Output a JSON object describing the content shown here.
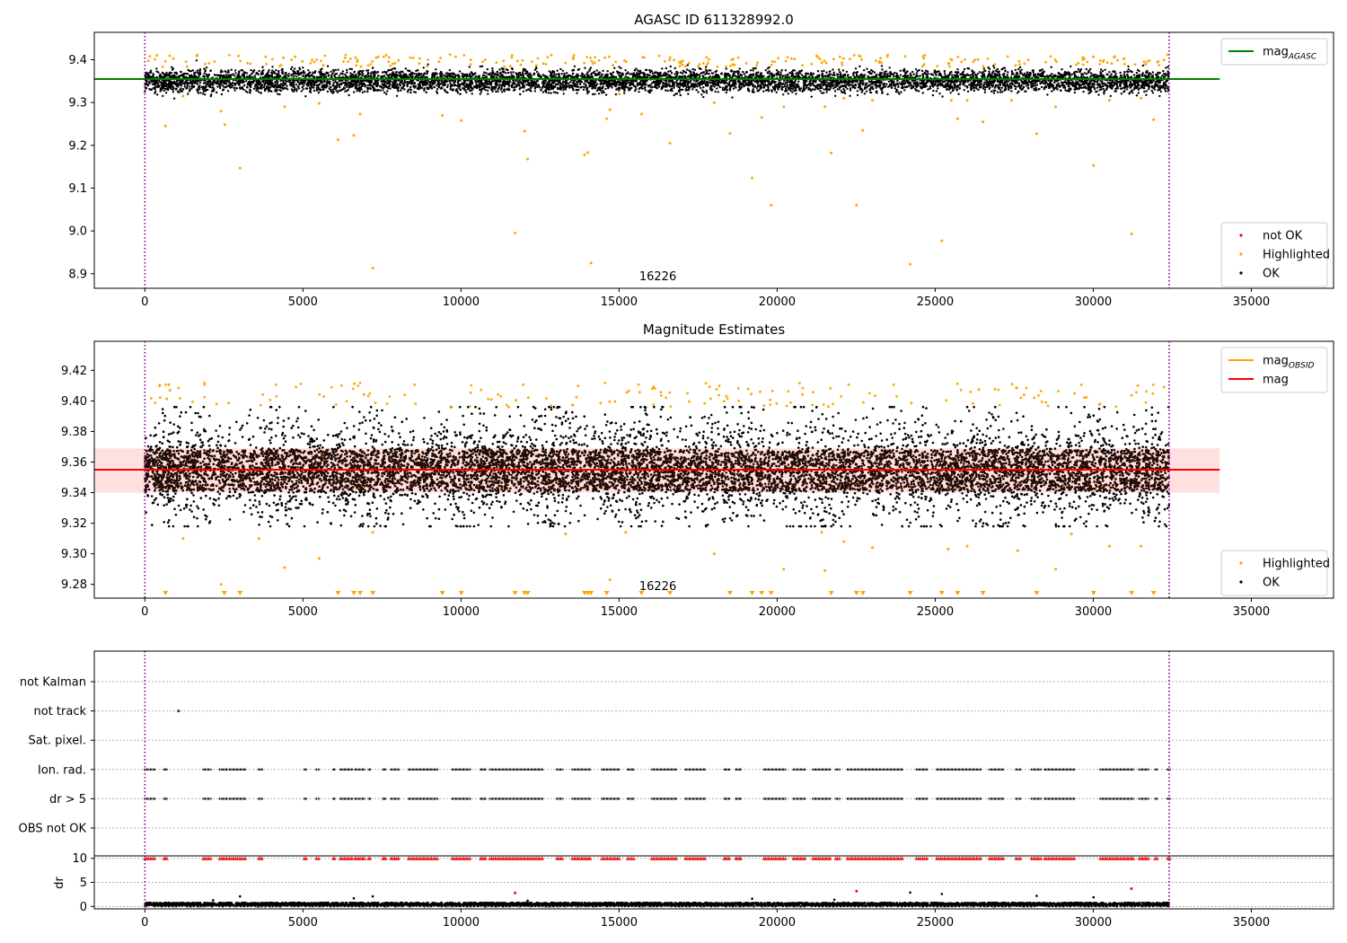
{
  "figure": {
    "background": "#ffffff"
  },
  "chart_data": [
    {
      "type": "scatter",
      "title": "AGASC ID 611328992.0",
      "xlabel": "",
      "ylabel": "",
      "xlim": [
        -1600,
        37600
      ],
      "ylim": [
        8.866,
        9.464
      ],
      "xticks": [
        "0",
        "5000",
        "10000",
        "15000",
        "20000",
        "25000",
        "30000",
        "35000"
      ],
      "yticks": [
        "8.9",
        "9.0",
        "9.1",
        "9.2",
        "9.3",
        "9.4"
      ],
      "vlines": [
        0,
        32400
      ],
      "annotation": "16226",
      "annotation_x": 16226,
      "lines": [
        {
          "name": "mag_AGASC",
          "y": 9.355,
          "x": [
            -1600,
            34000
          ],
          "color": "#008000"
        }
      ],
      "band": {
        "center": 9.35,
        "halfwidth": 0.018,
        "noise": 0.008,
        "n_points": 7000,
        "color": "#000000"
      },
      "highlighted_upper": {
        "from": 9.383,
        "to": 9.412,
        "n_points": 240,
        "color": "#ffa500"
      },
      "highlighted_outliers": [
        [
          650,
          9.245
        ],
        [
          1210,
          9.315
        ],
        [
          2410,
          9.28
        ],
        [
          2530,
          9.248
        ],
        [
          3010,
          9.147
        ],
        [
          4420,
          9.29
        ],
        [
          5510,
          9.298
        ],
        [
          6110,
          9.213
        ],
        [
          6610,
          9.223
        ],
        [
          6810,
          9.273
        ],
        [
          7210,
          8.913
        ],
        [
          9410,
          9.27
        ],
        [
          10010,
          9.258
        ],
        [
          11710,
          8.995
        ],
        [
          12010,
          9.233
        ],
        [
          12110,
          9.168
        ],
        [
          13910,
          9.178
        ],
        [
          14010,
          9.183
        ],
        [
          14110,
          8.925
        ],
        [
          14610,
          9.262
        ],
        [
          14710,
          9.283
        ],
        [
          15010,
          9.32
        ],
        [
          15710,
          9.273
        ],
        [
          16610,
          9.205
        ],
        [
          18010,
          9.3
        ],
        [
          18510,
          9.228
        ],
        [
          19210,
          9.124
        ],
        [
          19510,
          9.265
        ],
        [
          19810,
          9.06
        ],
        [
          20210,
          9.29
        ],
        [
          21510,
          9.29
        ],
        [
          21710,
          9.182
        ],
        [
          22110,
          9.31
        ],
        [
          22510,
          9.06
        ],
        [
          22710,
          9.235
        ],
        [
          23010,
          9.305
        ],
        [
          24210,
          8.922
        ],
        [
          25210,
          8.977
        ],
        [
          25510,
          9.305
        ],
        [
          25710,
          9.262
        ],
        [
          26010,
          9.305
        ],
        [
          26510,
          9.255
        ],
        [
          27410,
          9.305
        ],
        [
          28210,
          9.227
        ],
        [
          28810,
          9.29
        ],
        [
          30010,
          9.153
        ],
        [
          30510,
          9.305
        ],
        [
          31210,
          8.993
        ],
        [
          31510,
          9.31
        ],
        [
          31910,
          9.26
        ]
      ],
      "legend_upper": {
        "placement": "upper right",
        "entries": [
          {
            "label": "mag",
            "sub": "AGASC",
            "color": "#008000",
            "kind": "line"
          }
        ]
      },
      "legend_lower": {
        "placement": "lower right",
        "entries": [
          {
            "label": "not OK",
            "color": "#ff0000",
            "kind": "dot"
          },
          {
            "label": "Highlighted",
            "color": "#ffa500",
            "kind": "dot"
          },
          {
            "label": "OK",
            "color": "#000000",
            "kind": "dot"
          }
        ]
      }
    },
    {
      "type": "scatter",
      "title": "Magnitude Estimates",
      "xlabel": "",
      "ylabel": "",
      "xlim": [
        -1600,
        37600
      ],
      "ylim": [
        9.271,
        9.439
      ],
      "xticks": [
        "0",
        "5000",
        "10000",
        "15000",
        "20000",
        "25000",
        "30000",
        "35000"
      ],
      "yticks": [
        "9.28",
        "9.30",
        "9.32",
        "9.34",
        "9.36",
        "9.38",
        "9.40",
        "9.42"
      ],
      "vlines": [
        0,
        32400
      ],
      "annotation": "16226",
      "annotation_x": 16226,
      "shaded_band": {
        "y": [
          9.34,
          9.369
        ],
        "x": [
          -1600,
          34000
        ],
        "color": "#ff0000",
        "opacity": 0.12
      },
      "lines": [
        {
          "name": "mag_OBSID",
          "y": 9.355,
          "x": [
            0,
            32400
          ],
          "color": "#ffa500"
        },
        {
          "name": "mag",
          "y": 9.355,
          "x": [
            -1600,
            34000
          ],
          "color": "#ff0000"
        }
      ],
      "dense_core": {
        "from": 9.341,
        "to": 9.368,
        "n_points": 9000,
        "color": "#2a0d00"
      },
      "black_spread": {
        "from": 9.318,
        "to": 9.396,
        "n_points": 5000,
        "color": "#000000"
      },
      "highlighted_upper": {
        "from": 9.396,
        "to": 9.412,
        "n_points": 160,
        "color": "#ffa500"
      },
      "highlighted_outliers": [
        [
          1210,
          9.31
        ],
        [
          2410,
          9.28
        ],
        [
          3610,
          9.31
        ],
        [
          4420,
          9.291
        ],
        [
          5510,
          9.297
        ],
        [
          7210,
          9.314
        ],
        [
          13310,
          9.313
        ],
        [
          14710,
          9.283
        ],
        [
          15210,
          9.314
        ],
        [
          18010,
          9.3
        ],
        [
          20210,
          9.29
        ],
        [
          21510,
          9.289
        ],
        [
          21410,
          9.314
        ],
        [
          22110,
          9.308
        ],
        [
          23010,
          9.304
        ],
        [
          25410,
          9.303
        ],
        [
          26010,
          9.305
        ],
        [
          27610,
          9.302
        ],
        [
          28810,
          9.29
        ],
        [
          29310,
          9.313
        ],
        [
          30510,
          9.305
        ],
        [
          31510,
          9.305
        ]
      ],
      "clipped_markers": [
        650,
        2510,
        3010,
        6110,
        6610,
        6810,
        7210,
        9410,
        10010,
        11710,
        12010,
        12110,
        13910,
        14010,
        14110,
        14610,
        15710,
        16610,
        18510,
        19210,
        19510,
        19810,
        21710,
        22510,
        22710,
        24210,
        25210,
        25710,
        26510,
        28210,
        30010,
        31210,
        31910
      ],
      "legend_upper": {
        "placement": "upper right",
        "entries": [
          {
            "label": "mag",
            "sub": "OBSID",
            "color": "#ffa500",
            "kind": "line"
          },
          {
            "label": "mag",
            "sub": "",
            "color": "#ff0000",
            "kind": "line"
          }
        ]
      },
      "legend_lower": {
        "placement": "lower right",
        "entries": [
          {
            "label": "Highlighted",
            "color": "#ffa500",
            "kind": "dot"
          },
          {
            "label": "OK",
            "color": "#000000",
            "kind": "dot"
          }
        ]
      }
    },
    {
      "type": "scatter",
      "title": "",
      "xlim": [
        -1600,
        37600
      ],
      "categories": [
        "not Kalman",
        "not track",
        "Sat. pixel.",
        "Ion. rad.",
        "dr > 5",
        "OBS not OK"
      ],
      "vlines": [
        0,
        32400
      ],
      "not_track_x": [
        1060
      ],
      "flag_segments": [
        [
          0,
          300
        ],
        [
          600,
          700
        ],
        [
          1840,
          2080
        ],
        [
          2370,
          2600
        ],
        [
          2680,
          3180
        ],
        [
          3610,
          3700
        ],
        [
          5040,
          5100
        ],
        [
          5430,
          5500
        ],
        [
          5960,
          6000
        ],
        [
          6180,
          6550
        ],
        [
          6650,
          6950
        ],
        [
          7070,
          7120
        ],
        [
          7520,
          7620
        ],
        [
          7790,
          8020
        ],
        [
          8340,
          9250
        ],
        [
          9730,
          10280
        ],
        [
          10620,
          10770
        ],
        [
          10910,
          12570
        ],
        [
          13040,
          13210
        ],
        [
          13520,
          14090
        ],
        [
          14450,
          15010
        ],
        [
          15270,
          15470
        ],
        [
          16030,
          16810
        ],
        [
          17100,
          17720
        ],
        [
          18320,
          18480
        ],
        [
          18700,
          18850
        ],
        [
          19580,
          20260
        ],
        [
          20520,
          20870
        ],
        [
          21130,
          21670
        ],
        [
          21850,
          21970
        ],
        [
          22230,
          23960
        ],
        [
          24410,
          24730
        ],
        [
          25050,
          26430
        ],
        [
          26710,
          27160
        ],
        [
          27560,
          27690
        ],
        [
          28050,
          28340
        ],
        [
          28470,
          29390
        ],
        [
          30220,
          31270
        ],
        [
          31460,
          31740
        ],
        [
          31950,
          32010
        ],
        [
          32360,
          32420
        ]
      ],
      "grid": true
    },
    {
      "type": "scatter",
      "title": "",
      "xlabel": "",
      "ylabel": "dr",
      "xlim": [
        -1600,
        37600
      ],
      "ylim": [
        -0.5,
        10.5
      ],
      "xticks": [
        "0",
        "5000",
        "10000",
        "15000",
        "20000",
        "25000",
        "30000",
        "35000"
      ],
      "yticks": [
        "0",
        "5",
        "10"
      ],
      "vlines": [
        0,
        32400
      ],
      "baseline": {
        "from": 0,
        "to": 0.8,
        "n_points": 6000,
        "color": "#000000"
      },
      "clipped_at": 10,
      "clipped_color": "#ff0000",
      "red_points": [
        [
          11710,
          2.8
        ],
        [
          22510,
          3.2
        ],
        [
          31210,
          3.7
        ]
      ],
      "black_points": [
        [
          2160,
          1.3
        ],
        [
          3010,
          2.1
        ],
        [
          6610,
          1.7
        ],
        [
          7210,
          2.1
        ],
        [
          12110,
          1.2
        ],
        [
          19210,
          1.6
        ],
        [
          21810,
          1.4
        ],
        [
          24210,
          2.9
        ],
        [
          25210,
          2.6
        ],
        [
          28210,
          2.2
        ],
        [
          30010,
          1.9
        ]
      ],
      "grid": true
    }
  ]
}
